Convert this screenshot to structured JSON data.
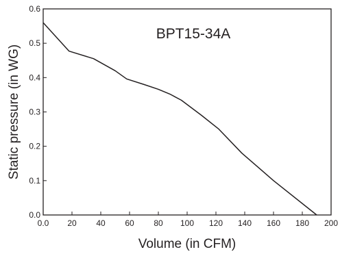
{
  "chart_data": {
    "type": "line",
    "title": "BPT15-34A",
    "xlabel": "Volume (in CFM)",
    "ylabel": "Static pressure (in WG)",
    "xlim": [
      0,
      200
    ],
    "ylim": [
      0,
      0.6
    ],
    "x_ticks": [
      "0.0",
      "20",
      "40",
      "60",
      "80",
      "100",
      "120",
      "140",
      "160",
      "180",
      "200"
    ],
    "y_ticks": [
      "0.0",
      "0.1",
      "0.2",
      "0.3",
      "0.4",
      "0.5",
      "0.6"
    ],
    "grid": false,
    "series": [
      {
        "x": [
          0,
          18,
          35,
          50,
          58,
          70,
          80,
          88,
          96,
          110,
          122,
          138,
          160,
          190
        ],
        "y": [
          0.56,
          0.477,
          0.455,
          0.42,
          0.396,
          0.38,
          0.366,
          0.352,
          0.334,
          0.29,
          0.25,
          0.18,
          0.1,
          0.0
        ]
      }
    ],
    "colors": {
      "line": "#231f20",
      "axis": "#231f20",
      "background": "#ffffff"
    }
  }
}
